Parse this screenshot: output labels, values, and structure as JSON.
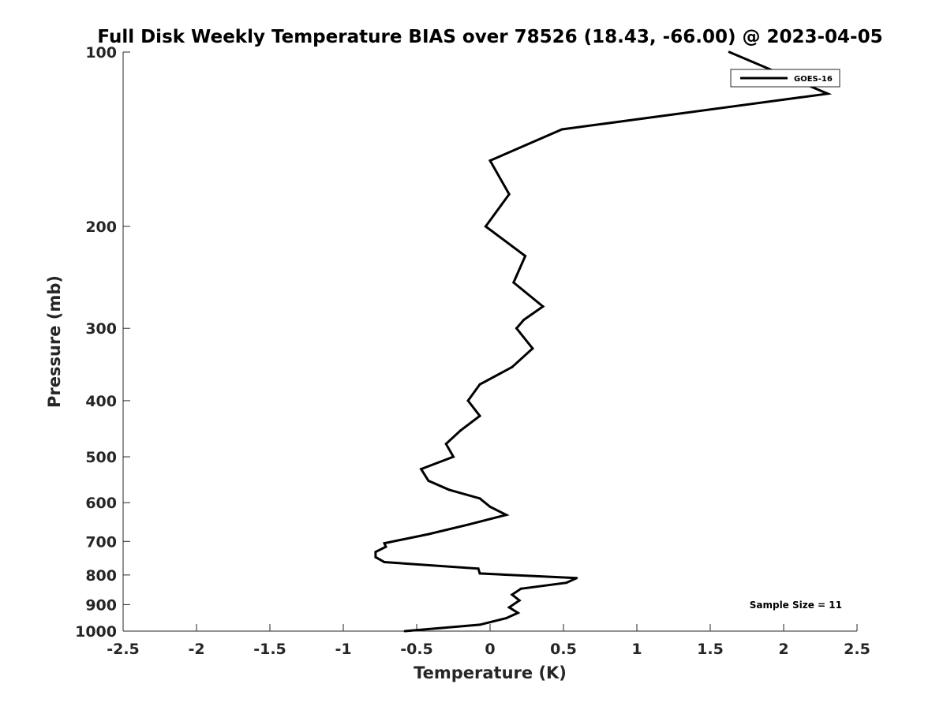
{
  "chart_data": {
    "type": "line",
    "title": "Full Disk Weekly Temperature BIAS over 78526 (18.43, -66.00) @ 2023-04-05",
    "xlabel": "Temperature (K)",
    "ylabel": "Pressure (mb)",
    "xlim": [
      -2.5,
      2.5
    ],
    "ylim": [
      1000,
      100
    ],
    "yscale": "log",
    "y_reversed": true,
    "grid": false,
    "legend_position": "top-right",
    "xticks": [
      "-2.5",
      "-2",
      "-1.5",
      "-1",
      "-0.5",
      "0",
      "0.5",
      "1",
      "1.5",
      "2",
      "2.5"
    ],
    "yticks": [
      "100",
      "200",
      "300",
      "400",
      "500",
      "600",
      "700",
      "800",
      "900",
      "1000"
    ],
    "annotation": "Sample Size = 11",
    "series": [
      {
        "name": "GOES-16",
        "color": "#000000",
        "points": [
          {
            "x": 1.63,
            "p": 100
          },
          {
            "x": 2.3,
            "p": 118
          },
          {
            "x": 0.49,
            "p": 136
          },
          {
            "x": 0.0,
            "p": 154
          },
          {
            "x": 0.13,
            "p": 176
          },
          {
            "x": -0.03,
            "p": 200
          },
          {
            "x": 0.24,
            "p": 225
          },
          {
            "x": 0.16,
            "p": 250
          },
          {
            "x": 0.36,
            "p": 275
          },
          {
            "x": 0.23,
            "p": 290
          },
          {
            "x": 0.18,
            "p": 300
          },
          {
            "x": 0.29,
            "p": 325
          },
          {
            "x": 0.15,
            "p": 350
          },
          {
            "x": -0.07,
            "p": 375
          },
          {
            "x": -0.15,
            "p": 400
          },
          {
            "x": -0.07,
            "p": 425
          },
          {
            "x": -0.2,
            "p": 450
          },
          {
            "x": -0.3,
            "p": 475
          },
          {
            "x": -0.25,
            "p": 500
          },
          {
            "x": -0.47,
            "p": 525
          },
          {
            "x": -0.42,
            "p": 550
          },
          {
            "x": -0.28,
            "p": 570
          },
          {
            "x": -0.07,
            "p": 590
          },
          {
            "x": 0.0,
            "p": 610
          },
          {
            "x": 0.11,
            "p": 630
          },
          {
            "x": -0.15,
            "p": 655
          },
          {
            "x": -0.42,
            "p": 680
          },
          {
            "x": -0.72,
            "p": 705
          },
          {
            "x": -0.71,
            "p": 715
          },
          {
            "x": -0.78,
            "p": 730
          },
          {
            "x": -0.78,
            "p": 745
          },
          {
            "x": -0.72,
            "p": 760
          },
          {
            "x": -0.08,
            "p": 780
          },
          {
            "x": -0.07,
            "p": 795
          },
          {
            "x": 0.59,
            "p": 810
          },
          {
            "x": 0.52,
            "p": 825
          },
          {
            "x": 0.21,
            "p": 845
          },
          {
            "x": 0.15,
            "p": 865
          },
          {
            "x": 0.2,
            "p": 885
          },
          {
            "x": 0.13,
            "p": 910
          },
          {
            "x": 0.19,
            "p": 930
          },
          {
            "x": 0.11,
            "p": 950
          },
          {
            "x": -0.07,
            "p": 975
          },
          {
            "x": -0.58,
            "p": 1000
          }
        ]
      }
    ]
  }
}
